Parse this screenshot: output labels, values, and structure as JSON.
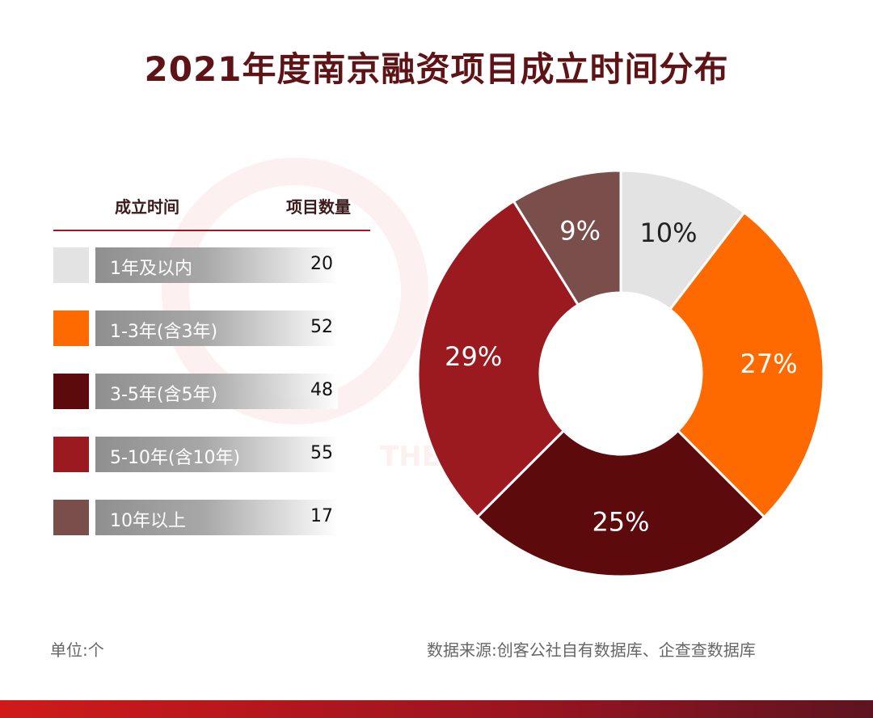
{
  "title": "2021年度南京融资项目成立时间分布",
  "table": {
    "header_period": "成立时间",
    "header_count": "项目数量"
  },
  "unit_note": "单位:个",
  "source_note": "数据来源:创客公社自有数据库、企查查数据库",
  "watermark_text": "THE",
  "chart_data": {
    "type": "pie",
    "donut": true,
    "start": "top, clockwise",
    "categories": [
      "1年及以内",
      "1-3年(含3年)",
      "3-5年(含5年)",
      "5-10年(含10年)",
      "10年以上"
    ],
    "values": [
      20,
      52,
      48,
      55,
      17
    ],
    "percent_labels": [
      "10%",
      "27%",
      "25%",
      "29%",
      "9%"
    ],
    "colors": [
      "#e3e3e3",
      "#ff6a00",
      "#5c0a0c",
      "#9b1a1f",
      "#7a4e4a"
    ],
    "label_colors": [
      "#222222",
      "#ffffff",
      "#ffffff",
      "#ffffff",
      "#ffffff"
    ]
  }
}
